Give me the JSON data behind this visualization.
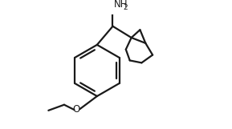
{
  "background_color": "#ffffff",
  "line_color": "#1a1a1a",
  "line_width": 1.6,
  "text_color": "#1a1a1a",
  "figsize": [
    2.89,
    1.61
  ],
  "dpi": 100
}
